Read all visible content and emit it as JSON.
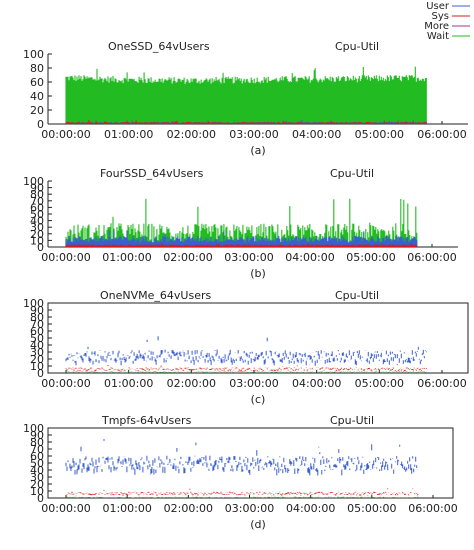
{
  "legend": {
    "position": "top-right",
    "items": [
      {
        "label": "User",
        "color": "#3a5fd0"
      },
      {
        "label": "Sys",
        "color": "#d61c1c"
      },
      {
        "label": "More",
        "color": "#b0308a"
      },
      {
        "label": "Wait",
        "color": "#22bb22"
      }
    ]
  },
  "chart_data": [
    {
      "type": "area",
      "title": "OneSSD_64vUsers",
      "metric_label": "Cpu-Util",
      "caption": "(a)",
      "x_tick_labels": [
        "00:00:00",
        "01:00:00",
        "02:00:00",
        "03:00:00",
        "04:00:00",
        "05:00:00",
        "06:00:00"
      ],
      "x": [
        0,
        1,
        2,
        3,
        4,
        5,
        6
      ],
      "ylim": [
        0,
        100
      ],
      "y_ticks": [
        0,
        20,
        40,
        60,
        80,
        100
      ],
      "grid": false,
      "duration_hours": 5.75,
      "series": [
        {
          "name": "Wait",
          "values": [
            66,
            63,
            62,
            63,
            64,
            65,
            66
          ],
          "noise": 5
        },
        {
          "name": "User",
          "values": [
            2,
            2,
            2,
            2,
            2,
            2,
            2
          ],
          "noise": 1
        },
        {
          "name": "Sys",
          "values": [
            2,
            2,
            2,
            2,
            2,
            2,
            2
          ],
          "noise": 1
        }
      ]
    },
    {
      "type": "area",
      "title": "FourSSD_64vUsers",
      "metric_label": "Cpu-Util",
      "caption": "(b)",
      "x_tick_labels": [
        "00:00:00",
        "01:00:00",
        "02:00:00",
        "03:00:00",
        "04:00:00",
        "05:00:00",
        "06:00:00"
      ],
      "x": [
        0,
        1,
        2,
        3,
        4,
        5,
        6
      ],
      "ylim": [
        0,
        100
      ],
      "y_ticks": [
        0,
        10,
        20,
        30,
        40,
        50,
        60,
        70,
        80,
        90,
        100
      ],
      "grid": false,
      "duration_hours": 5.75,
      "series": [
        {
          "name": "Wait",
          "values": [
            20,
            22,
            20,
            21,
            20,
            22,
            21
          ],
          "noise": 15
        },
        {
          "name": "User",
          "values": [
            12,
            12,
            12,
            12,
            12,
            12,
            12
          ],
          "noise": 5
        },
        {
          "name": "Sys",
          "values": [
            3,
            3,
            3,
            3,
            3,
            3,
            3
          ],
          "noise": 1
        }
      ]
    },
    {
      "type": "line",
      "title": "OneNVMe_64vUsers",
      "metric_label": "Cpu-Util",
      "caption": "(c)",
      "x_tick_labels": [
        "00:00:00",
        "01:00:00",
        "02:00:00",
        "03:00:00",
        "04:00:00",
        "05:00:00",
        "06:00:00"
      ],
      "x": [
        0,
        1,
        2,
        3,
        4,
        5,
        6
      ],
      "ylim": [
        0,
        100
      ],
      "y_ticks": [
        0,
        10,
        20,
        30,
        40,
        50,
        60,
        70,
        80,
        90,
        100
      ],
      "grid": false,
      "duration_hours": 5.75,
      "series": [
        {
          "name": "User",
          "values": [
            25,
            25,
            26,
            25,
            25,
            25,
            25
          ],
          "noise": 8
        },
        {
          "name": "Sys",
          "values": [
            6,
            6,
            6,
            6,
            6,
            6,
            6
          ],
          "noise": 2
        },
        {
          "name": "Wait",
          "values": [
            2,
            2,
            2,
            2,
            2,
            2,
            2
          ],
          "noise": 1
        }
      ]
    },
    {
      "type": "line",
      "title": "Tmpfs-64vUsers",
      "metric_label": "Cpu-Util",
      "caption": "(d)",
      "x_tick_labels": [
        "00:00:00",
        "01:00:00",
        "02:00:00",
        "03:00:00",
        "04:00:00",
        "05:00:00",
        "06:00:00"
      ],
      "x": [
        0,
        1,
        2,
        3,
        4,
        5,
        6
      ],
      "ylim": [
        0,
        100
      ],
      "y_ticks": [
        0,
        10,
        20,
        30,
        40,
        50,
        60,
        70,
        80,
        90,
        100
      ],
      "grid": false,
      "duration_hours": 5.75,
      "series": [
        {
          "name": "User",
          "values": [
            50,
            50,
            51,
            50,
            50,
            50,
            50
          ],
          "noise": 10
        },
        {
          "name": "Sys",
          "values": [
            7,
            7,
            7,
            7,
            7,
            7,
            7
          ],
          "noise": 2
        },
        {
          "name": "Wait",
          "values": [
            1,
            1,
            1,
            1,
            1,
            1,
            1
          ],
          "noise": 1
        }
      ]
    }
  ]
}
